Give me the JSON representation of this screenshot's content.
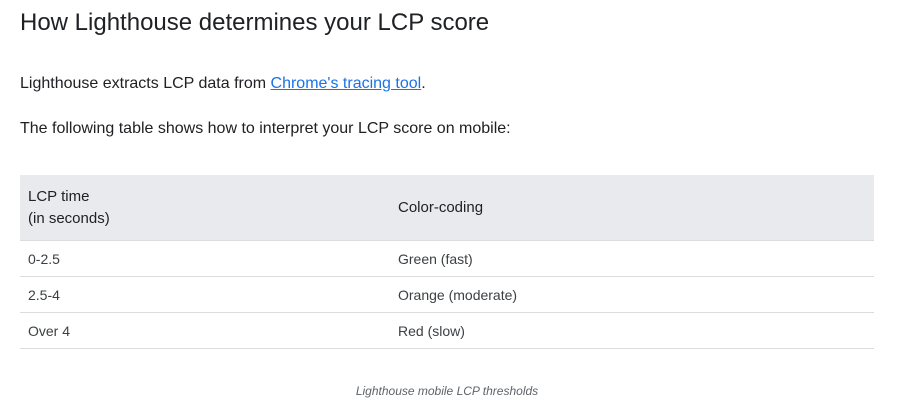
{
  "heading": "How Lighthouse determines your LCP score",
  "intro": {
    "before": "Lighthouse extracts LCP data from ",
    "link": "Chrome's tracing tool",
    "after": "."
  },
  "table_intro": "The following table shows how to interpret your LCP score on mobile:",
  "table": {
    "headers": [
      "LCP time",
      "(in seconds)",
      "Color-coding"
    ],
    "rows": [
      [
        "0-2.5",
        "Green (fast)"
      ],
      [
        "2.5-4",
        "Orange (moderate)"
      ],
      [
        "Over 4",
        "Red (slow)"
      ]
    ]
  },
  "caption": "Lighthouse mobile LCP thresholds"
}
